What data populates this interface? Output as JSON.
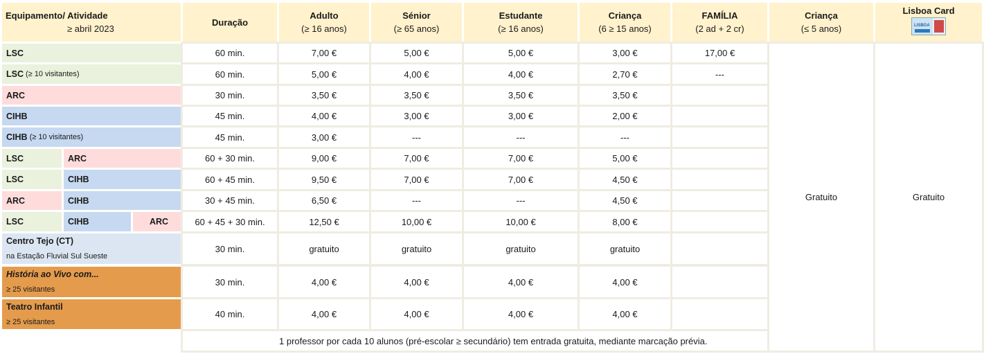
{
  "headers": {
    "equip_line1": "Equipamento/ Atividade",
    "equip_line2": "≥ abril 2023",
    "duracao": "Duração",
    "adulto": "Adulto",
    "adulto_sub": "(≥ 16 anos)",
    "senior": "Sénior",
    "senior_sub": "(≥ 65 anos)",
    "estudante": "Estudante",
    "estudante_sub": "(≥ 16 anos)",
    "crianca": "Criança",
    "crianca_sub": "(6 ≥ 15 anos)",
    "familia": "FAMÍLIA",
    "familia_sub": "(2 ad + 2 cr)",
    "crianca5": "Criança",
    "crianca5_sub": "(≤ 5 anos)",
    "lisboa": "Lisboa Card",
    "lisboa_icon": "lisboa-card-icon"
  },
  "rows": [
    {
      "labels": [
        {
          "t": "LSC",
          "s": "",
          "k": "lsc"
        }
      ],
      "dur": "60 min.",
      "adulto": "7,00 €",
      "senior": "5,00 €",
      "estudante": "5,00 €",
      "crianca": "3,00 €",
      "familia": "17,00 €"
    },
    {
      "labels": [
        {
          "t": "LSC",
          "s": "(≥ 10 visitantes)",
          "k": "lsc"
        }
      ],
      "dur": "60 min.",
      "adulto": "5,00 €",
      "senior": "4,00 €",
      "estudante": "4,00 €",
      "crianca": "2,70 €",
      "familia": "---"
    },
    {
      "labels": [
        {
          "t": "ARC",
          "s": "",
          "k": "arc"
        }
      ],
      "dur": "30 min.",
      "adulto": "3,50 €",
      "senior": "3,50 €",
      "estudante": "3,50 €",
      "crianca": "3,50 €",
      "familia": ""
    },
    {
      "labels": [
        {
          "t": "CIHB",
          "s": "",
          "k": "cihb"
        }
      ],
      "dur": "45 min.",
      "adulto": "4,00 €",
      "senior": "3,00 €",
      "estudante": "3,00 €",
      "crianca": "2,00 €",
      "familia": ""
    },
    {
      "labels": [
        {
          "t": "CIHB",
          "s": "(≥ 10 visitantes)",
          "k": "cihb"
        }
      ],
      "dur": "45 min.",
      "adulto": "3,00 €",
      "senior": "---",
      "estudante": "---",
      "crianca": "---",
      "familia": ""
    },
    {
      "labels": [
        {
          "t": "LSC",
          "s": "",
          "k": "lsc"
        },
        {
          "t": "ARC",
          "s": "",
          "k": "arc"
        }
      ],
      "dur": "60 + 30 min.",
      "adulto": "9,00 €",
      "senior": "7,00 €",
      "estudante": "7,00 €",
      "crianca": "5,00 €",
      "familia": ""
    },
    {
      "labels": [
        {
          "t": "LSC",
          "s": "",
          "k": "lsc"
        },
        {
          "t": "CIHB",
          "s": "",
          "k": "cihb"
        }
      ],
      "dur": "60 + 45 min.",
      "adulto": "9,50 €",
      "senior": "7,00 €",
      "estudante": "7,00 €",
      "crianca": "4,50 €",
      "familia": ""
    },
    {
      "labels": [
        {
          "t": "ARC",
          "s": "",
          "k": "arc"
        },
        {
          "t": "CIHB",
          "s": "",
          "k": "cihb"
        }
      ],
      "dur": "30 + 45 min.",
      "adulto": "6,50 €",
      "senior": "---",
      "estudante": "---",
      "crianca": "4,50 €",
      "familia": ""
    },
    {
      "labels": [
        {
          "t": "LSC",
          "s": "",
          "k": "lsc"
        },
        {
          "t": "CIHB",
          "s": "",
          "k": "cihb"
        },
        {
          "t": "ARC",
          "s": "",
          "k": "arc"
        }
      ],
      "dur": "60 + 45 + 30 min.",
      "adulto": "12,50 €",
      "senior": "10,00 €",
      "estudante": "10,00 €",
      "crianca": "8,00 €",
      "familia": ""
    },
    {
      "labels": [
        {
          "t": "Centro Tejo (CT)",
          "s": "na Estação Fluvial Sul Sueste",
          "k": "ct",
          "two": true
        }
      ],
      "dur": "30 min.",
      "adulto": "gratuito",
      "senior": "gratuito",
      "estudante": "gratuito",
      "crianca": "gratuito",
      "familia": ""
    },
    {
      "labels": [
        {
          "t": "História ao Vivo com...",
          "s": "≥ 25 visitantes",
          "k": "org",
          "two": true,
          "italic": true
        }
      ],
      "dur": "30 min.",
      "adulto": "4,00 €",
      "senior": "4,00 €",
      "estudante": "4,00 €",
      "crianca": "4,00 €",
      "familia": ""
    },
    {
      "labels": [
        {
          "t": "Teatro Infantil",
          "s": "≥ 25 visitantes",
          "k": "org",
          "two": true
        }
      ],
      "dur": "40 min.",
      "adulto": "4,00 €",
      "senior": "4,00 €",
      "estudante": "4,00 €",
      "crianca": "4,00 €",
      "familia": ""
    }
  ],
  "gratuito_crianca5": "Gratuito",
  "gratuito_lisboa": "Gratuito",
  "footer_note": "1 professor por cada 10 alunos (pré-escolar ≥ secundário) tem entrada gratuita, mediante marcação prévia."
}
